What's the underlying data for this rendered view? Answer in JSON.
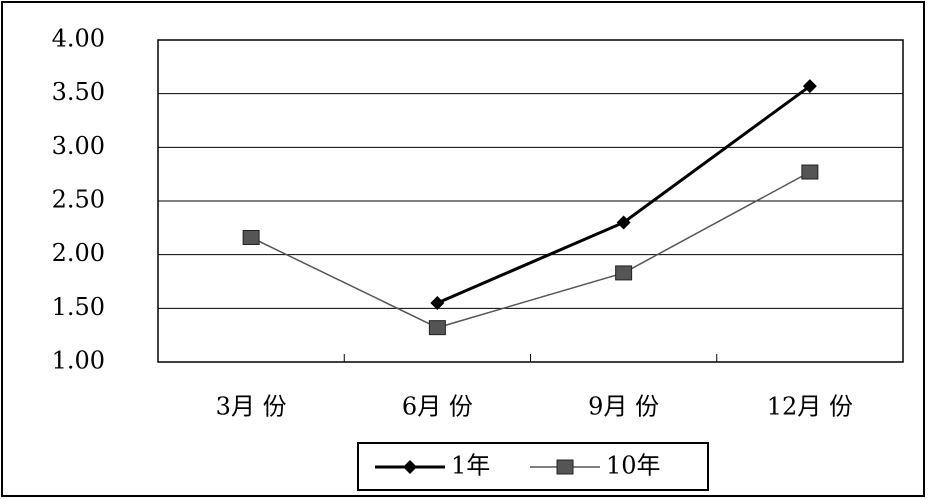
{
  "chart_data": {
    "type": "line",
    "categories": [
      "3月 份",
      "6月 份",
      "9月 份",
      "12月 份"
    ],
    "series": [
      {
        "name": "1年",
        "color": "#000000",
        "marker": "diamond",
        "values": [
          null,
          1.55,
          2.3,
          3.57
        ]
      },
      {
        "name": "10年",
        "color": "#555555",
        "marker": "square",
        "values": [
          2.16,
          1.32,
          1.83,
          2.77
        ]
      }
    ],
    "ylim": [
      1,
      4
    ],
    "yticks": [
      {
        "value": 1,
        "label": "1.00"
      },
      {
        "value": 1.5,
        "label": "1.50"
      },
      {
        "value": 2,
        "label": "2.00"
      },
      {
        "value": 2.5,
        "label": "2.50"
      },
      {
        "value": 3,
        "label": "3.00"
      },
      {
        "value": 3.5,
        "label": "3.50"
      },
      {
        "value": 4,
        "label": "4.00"
      }
    ],
    "grid": true,
    "legend": "bottom"
  }
}
